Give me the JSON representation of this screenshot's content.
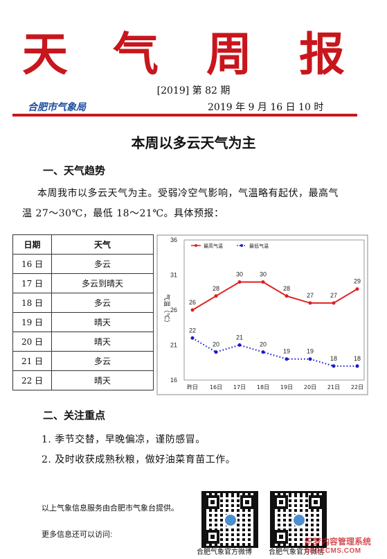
{
  "masthead": {
    "chars": [
      "天",
      "气",
      "周",
      "报"
    ]
  },
  "issue": {
    "text": "[2019] 第 82 期"
  },
  "bureau": "合肥市气象局",
  "date": "2019 年 9 月 16 日 10 时",
  "headline": "本周以多云天气为主",
  "section1": {
    "title": "一、天气趋势",
    "body": "本周我市以多云天气为主。受弱冷空气影响，气温略有起伏，最高气温 27～30℃，最低 18～21℃。具体预报："
  },
  "forecast_table": {
    "headers": [
      "日期",
      "天气"
    ],
    "rows": [
      [
        "16 日",
        "多云"
      ],
      [
        "17 日",
        "多云到晴天"
      ],
      [
        "18 日",
        "多云"
      ],
      [
        "19 日",
        "晴天"
      ],
      [
        "20 日",
        "晴天"
      ],
      [
        "21 日",
        "多云"
      ],
      [
        "22 日",
        "晴天"
      ]
    ]
  },
  "chart_data": {
    "type": "line",
    "categories": [
      "昨日",
      "16日",
      "17日",
      "18日",
      "19日",
      "20日",
      "21日",
      "22日"
    ],
    "series": [
      {
        "name": "最高气温",
        "values": [
          26,
          28,
          30,
          30,
          28,
          27,
          27,
          29
        ],
        "color": "#e02020",
        "style": "solid"
      },
      {
        "name": "最低气温",
        "values": [
          22,
          20,
          21,
          20,
          19,
          19,
          18,
          18
        ],
        "color": "#1a1ad0",
        "style": "dotted"
      }
    ],
    "ylabel": "气温（℃）",
    "ylim": [
      16,
      36
    ],
    "yticks": [
      16,
      21,
      26,
      31,
      36
    ],
    "grid": false,
    "legend": "top-left"
  },
  "section2": {
    "title": "二、关注重点"
  },
  "tips": [
    "1. 季节交替，早晚偏凉，谨防感冒。",
    "2. 及时收获成熟秋粮，做好油菜育苗工作。"
  ],
  "footer": {
    "line1": "以上气象信息服务由合肥市气象台提供。",
    "line2": "更多信息还可以访问:",
    "qr1_caption": "合肥气象官方微博",
    "qr2_caption": "合肥气象官方微信"
  },
  "watermark": {
    "line1": "织梦内容管理系统",
    "line2": "DEDECMS.COM"
  },
  "colors": {
    "accent": "#c8161d",
    "bureau": "#1c4fa0"
  }
}
